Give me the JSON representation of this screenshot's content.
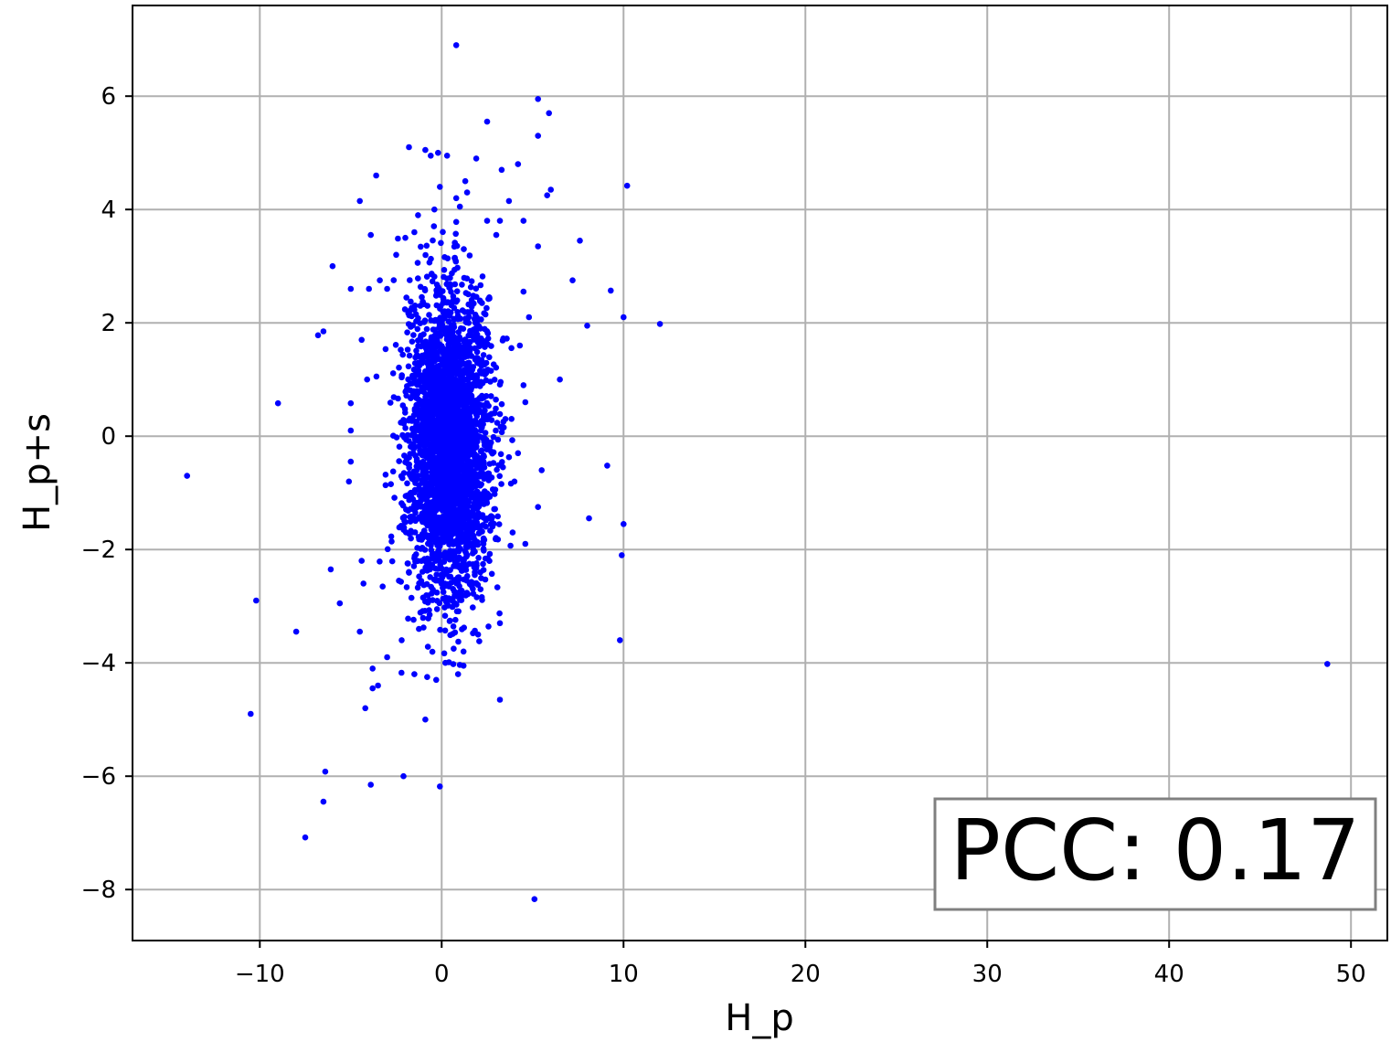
{
  "chart_data": {
    "type": "scatter",
    "xlabel": "H_p",
    "ylabel": "H_p+s",
    "xlim": [
      -17,
      52
    ],
    "ylim": [
      -8.9,
      7.6
    ],
    "x_ticks": [
      -10,
      0,
      10,
      20,
      30,
      40,
      50
    ],
    "y_ticks": [
      -8,
      -6,
      -4,
      -2,
      0,
      2,
      4,
      6
    ],
    "x_tick_labels": [
      "−10",
      "0",
      "10",
      "20",
      "30",
      "40",
      "50"
    ],
    "y_tick_labels": [
      "−8",
      "−6",
      "−4",
      "−2",
      "0",
      "2",
      "4",
      "6"
    ],
    "grid": true,
    "marker_color": "#0000ff",
    "annotation": {
      "text": "PCC: 0.17",
      "placement": "bottom-right"
    },
    "series": [
      {
        "points": [
          [
            0.8,
            6.9
          ],
          [
            5.3,
            5.95
          ],
          [
            5.9,
            5.7
          ],
          [
            2.5,
            5.55
          ],
          [
            5.3,
            5.3
          ],
          [
            -1.8,
            5.1
          ],
          [
            -0.9,
            5.05
          ],
          [
            -0.2,
            5.0
          ],
          [
            0.3,
            4.95
          ],
          [
            -0.6,
            4.95
          ],
          [
            1.9,
            4.9
          ],
          [
            4.2,
            4.8
          ],
          [
            3.3,
            4.7
          ],
          [
            -3.6,
            4.6
          ],
          [
            1.3,
            4.5
          ],
          [
            10.2,
            4.42
          ],
          [
            6.0,
            4.35
          ],
          [
            -0.1,
            4.4
          ],
          [
            1.4,
            4.3
          ],
          [
            0.8,
            4.2
          ],
          [
            5.8,
            4.25
          ],
          [
            3.7,
            4.15
          ],
          [
            -4.5,
            4.15
          ],
          [
            1.0,
            4.05
          ],
          [
            -0.4,
            4.0
          ],
          [
            3.2,
            3.8
          ],
          [
            -1.3,
            3.9
          ],
          [
            -3.9,
            3.55
          ],
          [
            -2.0,
            3.5
          ],
          [
            7.6,
            3.45
          ],
          [
            5.3,
            3.35
          ],
          [
            -6.0,
            3.0
          ],
          [
            7.2,
            2.75
          ],
          [
            -3.0,
            2.6
          ],
          [
            9.3,
            2.57
          ],
          [
            -5.0,
            2.6
          ],
          [
            10.0,
            2.1
          ],
          [
            12.0,
            1.98
          ],
          [
            8.0,
            1.95
          ],
          [
            -6.5,
            1.85
          ],
          [
            -6.8,
            1.78
          ],
          [
            6.5,
            1.0
          ],
          [
            -9.0,
            0.58
          ],
          [
            -14.0,
            -0.7
          ],
          [
            9.1,
            -0.52
          ],
          [
            5.5,
            -0.6
          ],
          [
            5.3,
            -1.25
          ],
          [
            8.1,
            -1.45
          ],
          [
            10.0,
            -1.55
          ],
          [
            4.6,
            -1.9
          ],
          [
            9.9,
            -2.1
          ],
          [
            -6.1,
            -2.35
          ],
          [
            -10.2,
            -2.9
          ],
          [
            -5.6,
            -2.95
          ],
          [
            -8.0,
            -3.45
          ],
          [
            -4.5,
            -3.45
          ],
          [
            9.8,
            -3.6
          ],
          [
            3.2,
            -3.3
          ],
          [
            48.7,
            -4.02
          ],
          [
            -3.0,
            -3.9
          ],
          [
            0.2,
            -4.0
          ],
          [
            -3.8,
            -4.1
          ],
          [
            -3.5,
            -4.4
          ],
          [
            -3.8,
            -4.45
          ],
          [
            3.2,
            -4.65
          ],
          [
            -4.2,
            -4.8
          ],
          [
            -10.5,
            -4.9
          ],
          [
            -0.9,
            -5.0
          ],
          [
            -6.4,
            -5.92
          ],
          [
            -6.5,
            -6.45
          ],
          [
            -2.1,
            -6.0
          ],
          [
            -3.9,
            -6.15
          ],
          [
            -0.1,
            -6.18
          ],
          [
            -7.5,
            -7.08
          ],
          [
            5.1,
            -8.17
          ],
          [
            -1.5,
            -4.2
          ],
          [
            -0.8,
            -4.25
          ],
          [
            0.9,
            -4.2
          ],
          [
            -0.3,
            -4.3
          ],
          [
            1.2,
            -3.8
          ],
          [
            2.0,
            -3.5
          ],
          [
            -2.2,
            -3.6
          ],
          [
            -4.3,
            -2.6
          ],
          [
            -4.4,
            -2.2
          ],
          [
            -5.1,
            -0.8
          ],
          [
            -5.0,
            -0.45
          ],
          [
            -5.0,
            0.1
          ],
          [
            -5.0,
            0.58
          ],
          [
            -4.1,
            1.0
          ],
          [
            -4.4,
            1.7
          ],
          [
            -4.0,
            2.6
          ],
          [
            -3.4,
            2.75
          ],
          [
            -2.5,
            3.2
          ],
          [
            -1.5,
            3.6
          ],
          [
            2.5,
            3.8
          ],
          [
            3.0,
            3.55
          ],
          [
            4.5,
            3.8
          ],
          [
            4.5,
            2.55
          ],
          [
            4.8,
            2.1
          ],
          [
            4.3,
            1.6
          ],
          [
            4.5,
            0.9
          ],
          [
            4.6,
            0.6
          ],
          [
            4.2,
            -0.3
          ],
          [
            4.0,
            -0.8
          ],
          [
            3.9,
            -1.7
          ]
        ],
        "cluster": {
          "count": 3100,
          "center": [
            0.4,
            -0.1
          ],
          "std": [
            1.15,
            1.35
          ],
          "xlim": [
            -3.6,
            3.9
          ],
          "ylim": [
            -4.2,
            3.9
          ]
        }
      }
    ]
  }
}
